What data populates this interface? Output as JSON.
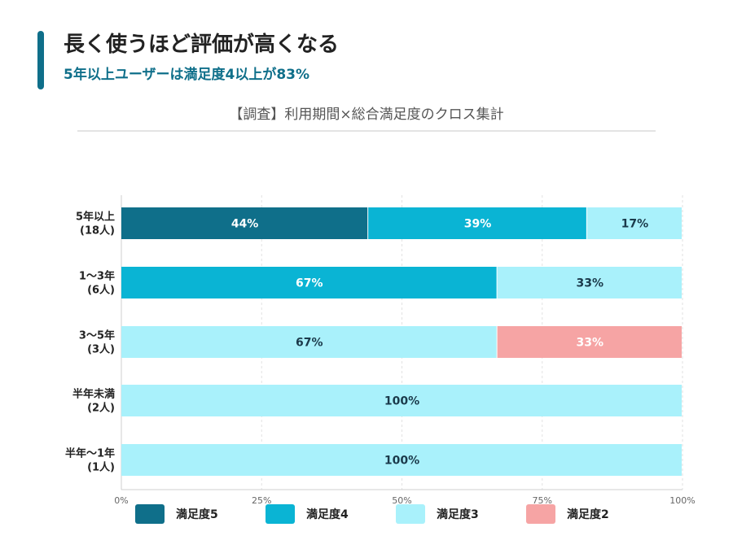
{
  "header": {
    "title": "長く使うほど評価が高くなる",
    "subtitle": "5年以上ユーザーは満足度4以上が83%"
  },
  "chart_caption": "【調査】利用期間×総合満足度のクロス集計",
  "colors": {
    "accent": "#0f6f8a",
    "satisfaction_5": "#0f6f8a",
    "satisfaction_4": "#0ab4d4",
    "satisfaction_3": "#a9f1fb",
    "satisfaction_2": "#f6a4a4"
  },
  "chart_data": {
    "type": "bar",
    "orientation": "horizontal",
    "stacked": true,
    "categories": [
      [
        "5年以上",
        "(18人)"
      ],
      [
        "1〜3年",
        "(6人)"
      ],
      [
        "3〜5年",
        "(3人)"
      ],
      [
        "半年未満",
        "(2人)"
      ],
      [
        "半年〜1年",
        "(1人)"
      ]
    ],
    "series": [
      {
        "name": "満足度5",
        "color": "#0f6f8a",
        "label_color": "#ffffff",
        "values": [
          44,
          0,
          0,
          0,
          0
        ]
      },
      {
        "name": "満足度4",
        "color": "#0ab4d4",
        "label_color": "#ffffff",
        "values": [
          39,
          67,
          0,
          0,
          0
        ]
      },
      {
        "name": "満足度3",
        "color": "#a9f1fb",
        "label_color": "#1b3a4b",
        "values": [
          17,
          33,
          67,
          100,
          100
        ]
      },
      {
        "name": "満足度2",
        "color": "#f6a4a4",
        "label_color": "#ffffff",
        "values": [
          0,
          0,
          33,
          0,
          0
        ]
      }
    ],
    "x_ticks": [
      "0%",
      "25%",
      "50%",
      "75%",
      "100%"
    ],
    "xlim": [
      0,
      100
    ],
    "grid": true,
    "legend_position": "bottom"
  }
}
